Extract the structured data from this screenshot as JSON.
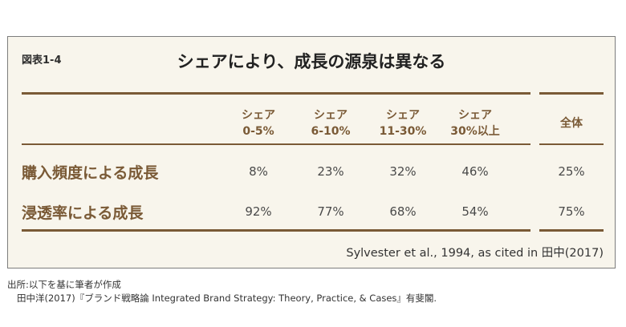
{
  "figure": {
    "label": "図表1-4",
    "title": "シェアにより、成長の源泉は異なる"
  },
  "table": {
    "columns": [
      {
        "line1": "シェア",
        "line2": "0-5%"
      },
      {
        "line1": "シェア",
        "line2": "6-10%"
      },
      {
        "line1": "シェア",
        "line2": "11-30%"
      },
      {
        "line1": "シェア",
        "line2": "30%以上"
      },
      {
        "line1": "全体",
        "line2": ""
      }
    ],
    "rows": [
      {
        "label": "購入頻度による成長",
        "values": [
          "8%",
          "23%",
          "32%",
          "46%",
          "25%"
        ]
      },
      {
        "label": "浸透率による成長",
        "values": [
          "92%",
          "77%",
          "68%",
          "54%",
          "75%"
        ]
      }
    ]
  },
  "citation": "Sylvester et al., 1994, as cited in 田中(2017)",
  "source": {
    "line1": "出所:以下を基に筆者が作成",
    "line2": "田中洋(2017)『ブランド戦略論 Integrated Brand Strategy: Theory, Practice, & Cases』有斐閣."
  }
}
